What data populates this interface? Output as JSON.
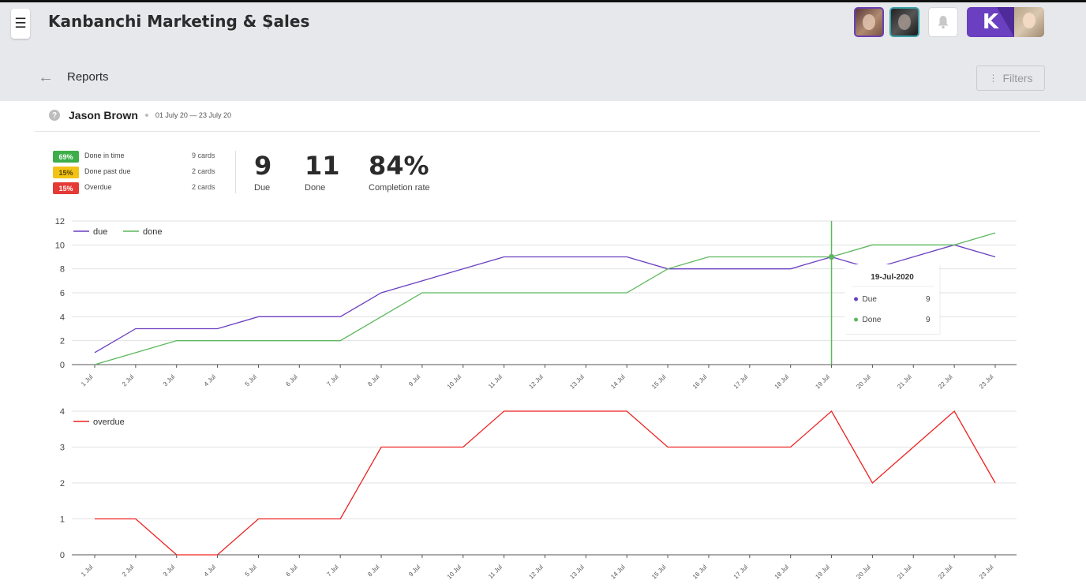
{
  "header": {
    "menu_icon": "hamburger-icon",
    "board_title": "Kanbanchi Marketing & Sales",
    "logo_letter": "K"
  },
  "subheader": {
    "title": "Reports",
    "filters_label": "Filters"
  },
  "report": {
    "user_name": "Jason Brown",
    "date_range": "01 July 20 — 23 July 20",
    "breakdown": [
      {
        "percent": "69%",
        "label": "Done in time",
        "count": "9 cards",
        "color": "#3cae4a"
      },
      {
        "percent": "15%",
        "label": "Done past due",
        "count": "2 cards",
        "color": "#f2c314"
      },
      {
        "percent": "15%",
        "label": "Overdue",
        "count": "2 cards",
        "color": "#e53935"
      }
    ],
    "stats": {
      "due_value": "9",
      "due_label": "Due",
      "done_value": "11",
      "done_label": "Done",
      "rate_value": "84%",
      "rate_label": "Completion rate"
    }
  },
  "chart_data": [
    {
      "type": "line",
      "categories": [
        "1 Jul",
        "2 Jul",
        "3 Jul",
        "4 Jul",
        "5 Jul",
        "6 Jul",
        "7 Jul",
        "8 Jul",
        "9 Jul",
        "10 Jul",
        "11 Jul",
        "12 Jul",
        "13 Jul",
        "14 Jul",
        "15 Jul",
        "16 Jul",
        "17 Jul",
        "18 Jul",
        "19 Jul",
        "20 Jul",
        "21 Jul",
        "22 Jul",
        "23 Jul"
      ],
      "series": [
        {
          "name": "due",
          "color": "#6a3fc0",
          "values": [
            1,
            3,
            3,
            3,
            4,
            4,
            4,
            6,
            7,
            8,
            9,
            9,
            9,
            9,
            8,
            8,
            8,
            8,
            9,
            8,
            9,
            10,
            9
          ]
        },
        {
          "name": "done",
          "color": "#5cb85c",
          "values": [
            0,
            1,
            2,
            2,
            2,
            2,
            2,
            4,
            6,
            6,
            6,
            6,
            6,
            6,
            8,
            9,
            9,
            9,
            9,
            10,
            10,
            10,
            11
          ]
        }
      ],
      "ylim": [
        0,
        12
      ],
      "yticks": [
        0,
        2,
        4,
        6,
        8,
        10,
        12
      ],
      "legend": "top-left",
      "grid": true,
      "tooltip": {
        "category_index": 18,
        "title": "19-Jul-2020",
        "rows": [
          {
            "label": "Due",
            "value": "9",
            "color": "#6a3fc0"
          },
          {
            "label": "Done",
            "value": "9",
            "color": "#5cb85c"
          }
        ]
      }
    },
    {
      "type": "line",
      "categories": [
        "1 Jul",
        "2 Jul",
        "3 Jul",
        "4 Jul",
        "5 Jul",
        "6 Jul",
        "7 Jul",
        "8 Jul",
        "9 Jul",
        "10 Jul",
        "11 Jul",
        "12 Jul",
        "13 Jul",
        "14 Jul",
        "15 Jul",
        "16 Jul",
        "17 Jul",
        "18 Jul",
        "19 Jul",
        "20 Jul",
        "21 Jul",
        "22 Jul",
        "23 Jul"
      ],
      "series": [
        {
          "name": "overdue",
          "color": "#ee2222",
          "values": [
            1,
            1,
            0,
            0,
            1,
            1,
            1,
            3,
            3,
            3,
            4,
            4,
            4,
            4,
            3,
            3,
            3,
            3,
            4,
            2,
            3,
            4,
            2
          ]
        }
      ],
      "ylim": [
        0,
        4
      ],
      "yticks": [
        0,
        1,
        2,
        3,
        4
      ],
      "legend": "top-left",
      "grid": true
    }
  ]
}
